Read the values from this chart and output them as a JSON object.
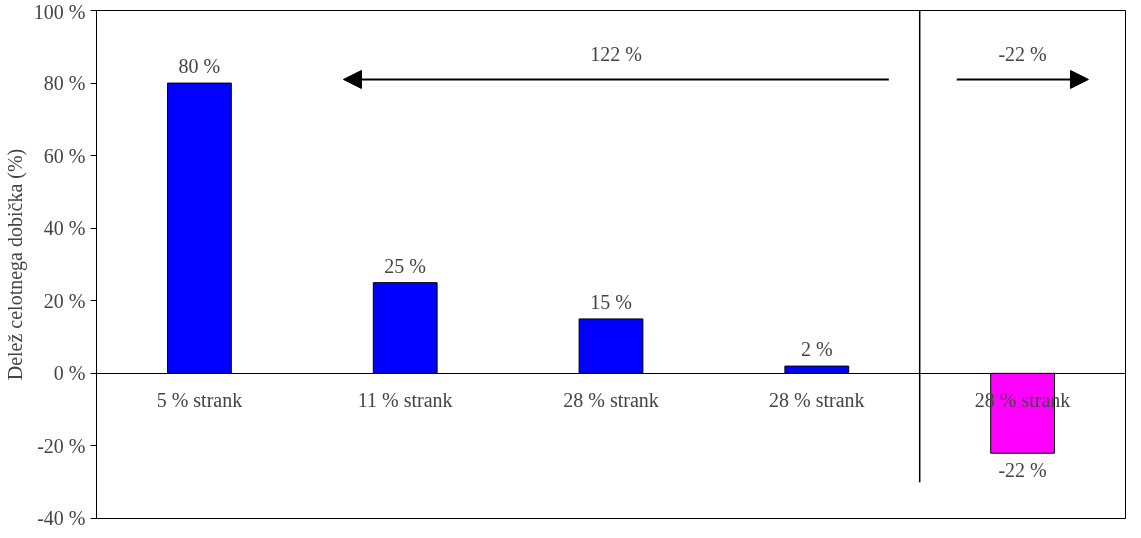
{
  "chart_data": {
    "type": "bar",
    "ylabel": "Delež celotnega dobička (%)",
    "categories": [
      "5 % strank",
      "11 % strank",
      "28 % strank",
      "28 % strank",
      "28 % strank"
    ],
    "values": [
      80,
      25,
      15,
      2,
      -22
    ],
    "colors": [
      "#0000ff",
      "#0000ff",
      "#0000ff",
      "#0000ff",
      "#ff00ff"
    ],
    "value_labels": [
      "80 %",
      "25 %",
      "15 %",
      "2 %",
      "-22 %"
    ],
    "ylim": [
      -40,
      100
    ],
    "yticks": [
      {
        "value": -40,
        "label": "-40 %"
      },
      {
        "value": -20,
        "label": "-20 %"
      },
      {
        "value": 0,
        "label": "0 %"
      },
      {
        "value": 20,
        "label": "20 %"
      },
      {
        "value": 40,
        "label": "40 %"
      },
      {
        "value": 60,
        "label": "60 %"
      },
      {
        "value": 80,
        "label": "80 %"
      },
      {
        "value": 100,
        "label": "100 %"
      }
    ],
    "annotations": [
      "122 %",
      "-22 %"
    ],
    "grid": false
  }
}
